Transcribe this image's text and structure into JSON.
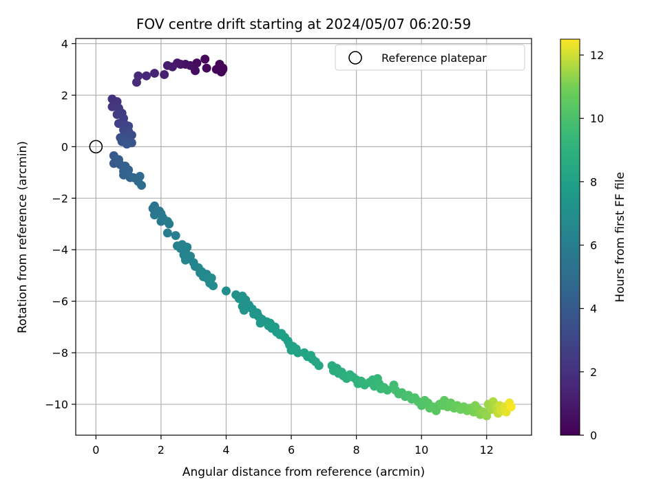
{
  "chart_data": {
    "type": "scatter",
    "title": "FOV centre drift starting at 2024/05/07 06:20:59",
    "xlabel": "Angular distance from reference (arcmin)",
    "ylabel": "Rotation from reference (arcmin)",
    "xlim": [
      -0.62,
      13.38
    ],
    "ylim": [
      -11.2,
      4.2
    ],
    "xticks": [
      0,
      2,
      4,
      6,
      8,
      10,
      12
    ],
    "yticks": [
      -10,
      -8,
      -6,
      -4,
      -2,
      0,
      2,
      4
    ],
    "xtick_labels": [
      "0",
      "2",
      "4",
      "6",
      "8",
      "10",
      "12"
    ],
    "ytick_labels": [
      "−10",
      "−8",
      "−6",
      "−4",
      "−2",
      "0",
      "2",
      "4"
    ],
    "grid": true,
    "colormap": "viridis",
    "colorbar": {
      "label": "Hours from first FF file",
      "range": [
        0,
        12.5
      ],
      "ticks": [
        0,
        2,
        4,
        6,
        8,
        10,
        12
      ],
      "tick_labels": [
        "0",
        "2",
        "4",
        "6",
        "8",
        "10",
        "12"
      ]
    },
    "reference_point": {
      "x": 0,
      "y": 0,
      "label": "Reference platepar",
      "marker": "open-circle"
    },
    "legend": {
      "location": "upper right",
      "entries": [
        "Reference platepar"
      ]
    },
    "series": [
      {
        "color_by": "hours",
        "points": [
          {
            "x": 3.85,
            "y": 2.9,
            "hours": 0.0
          },
          {
            "x": 3.9,
            "y": 3.0,
            "hours": 0.05
          },
          {
            "x": 3.8,
            "y": 3.2,
            "hours": 0.1
          },
          {
            "x": 3.9,
            "y": 3.05,
            "hours": 0.15
          },
          {
            "x": 3.7,
            "y": 3.0,
            "hours": 0.2
          },
          {
            "x": 3.35,
            "y": 3.4,
            "hours": 0.3
          },
          {
            "x": 3.4,
            "y": 3.05,
            "hours": 0.35
          },
          {
            "x": 3.1,
            "y": 3.25,
            "hours": 0.45
          },
          {
            "x": 3.05,
            "y": 2.95,
            "hours": 0.5
          },
          {
            "x": 2.9,
            "y": 3.15,
            "hours": 0.6
          },
          {
            "x": 2.75,
            "y": 3.2,
            "hours": 0.7
          },
          {
            "x": 2.6,
            "y": 3.2,
            "hours": 0.8
          },
          {
            "x": 2.5,
            "y": 3.25,
            "hours": 0.9
          },
          {
            "x": 2.35,
            "y": 3.1,
            "hours": 1.0
          },
          {
            "x": 2.2,
            "y": 3.15,
            "hours": 1.1
          },
          {
            "x": 2.1,
            "y": 2.8,
            "hours": 1.25
          },
          {
            "x": 1.8,
            "y": 2.85,
            "hours": 1.4
          },
          {
            "x": 1.55,
            "y": 2.75,
            "hours": 1.55
          },
          {
            "x": 1.3,
            "y": 2.75,
            "hours": 1.7
          },
          {
            "x": 1.25,
            "y": 2.5,
            "hours": 1.85
          },
          {
            "x": 0.5,
            "y": 1.85,
            "hours": 2.05
          },
          {
            "x": 0.65,
            "y": 1.75,
            "hours": 2.15
          },
          {
            "x": 0.5,
            "y": 1.55,
            "hours": 2.25
          },
          {
            "x": 0.7,
            "y": 1.5,
            "hours": 2.35
          },
          {
            "x": 0.8,
            "y": 1.3,
            "hours": 2.45
          },
          {
            "x": 0.65,
            "y": 1.25,
            "hours": 2.55
          },
          {
            "x": 0.85,
            "y": 1.1,
            "hours": 2.65
          },
          {
            "x": 0.7,
            "y": 0.9,
            "hours": 2.75
          },
          {
            "x": 0.9,
            "y": 0.85,
            "hours": 2.85
          },
          {
            "x": 1.0,
            "y": 0.8,
            "hours": 2.95
          },
          {
            "x": 0.85,
            "y": 0.65,
            "hours": 3.05
          },
          {
            "x": 1.0,
            "y": 0.6,
            "hours": 3.15
          },
          {
            "x": 0.9,
            "y": 0.45,
            "hours": 3.25
          },
          {
            "x": 1.1,
            "y": 0.45,
            "hours": 3.35
          },
          {
            "x": 0.75,
            "y": 0.35,
            "hours": 3.45
          },
          {
            "x": 0.95,
            "y": 0.25,
            "hours": 3.55
          },
          {
            "x": 0.8,
            "y": 0.2,
            "hours": 3.65
          },
          {
            "x": 1.1,
            "y": 0.15,
            "hours": 3.75
          },
          {
            "x": 0.95,
            "y": 0.1,
            "hours": 3.85
          },
          {
            "x": 0.55,
            "y": -0.35,
            "hours": 4.0
          },
          {
            "x": 0.55,
            "y": -0.65,
            "hours": 4.05
          },
          {
            "x": 0.65,
            "y": -0.6,
            "hours": 4.1
          },
          {
            "x": 0.7,
            "y": -0.5,
            "hours": 4.15
          },
          {
            "x": 0.75,
            "y": -0.7,
            "hours": 4.2
          },
          {
            "x": 0.9,
            "y": -0.75,
            "hours": 4.3
          },
          {
            "x": 0.85,
            "y": -0.95,
            "hours": 4.35
          },
          {
            "x": 1.0,
            "y": -0.9,
            "hours": 4.4
          },
          {
            "x": 0.85,
            "y": -1.1,
            "hours": 4.45
          },
          {
            "x": 1.0,
            "y": -1.1,
            "hours": 4.5
          },
          {
            "x": 1.05,
            "y": -1.2,
            "hours": 4.55
          },
          {
            "x": 1.15,
            "y": -1.2,
            "hours": 4.6
          },
          {
            "x": 1.25,
            "y": -1.25,
            "hours": 4.7
          },
          {
            "x": 1.35,
            "y": -1.15,
            "hours": 4.8
          },
          {
            "x": 1.3,
            "y": -1.35,
            "hours": 4.85
          },
          {
            "x": 1.4,
            "y": -1.5,
            "hours": 4.95
          },
          {
            "x": 1.8,
            "y": -2.3,
            "hours": 5.5
          },
          {
            "x": 1.75,
            "y": -2.4,
            "hours": 5.52
          },
          {
            "x": 1.85,
            "y": -2.45,
            "hours": 5.55
          },
          {
            "x": 1.95,
            "y": -2.5,
            "hours": 5.58
          },
          {
            "x": 1.8,
            "y": -2.65,
            "hours": 5.6
          },
          {
            "x": 2.0,
            "y": -2.6,
            "hours": 5.65
          },
          {
            "x": 2.05,
            "y": -2.75,
            "hours": 5.7
          },
          {
            "x": 2.1,
            "y": -2.85,
            "hours": 5.75
          },
          {
            "x": 2.0,
            "y": -2.9,
            "hours": 5.78
          },
          {
            "x": 2.2,
            "y": -2.9,
            "hours": 5.82
          },
          {
            "x": 2.25,
            "y": -3.0,
            "hours": 5.86
          },
          {
            "x": 2.2,
            "y": -3.35,
            "hours": 5.95
          },
          {
            "x": 2.45,
            "y": -3.45,
            "hours": 6.0
          },
          {
            "x": 2.5,
            "y": -3.85,
            "hours": 6.1
          },
          {
            "x": 2.6,
            "y": -3.95,
            "hours": 6.15
          },
          {
            "x": 2.65,
            "y": -3.8,
            "hours": 6.18
          },
          {
            "x": 2.75,
            "y": -4.05,
            "hours": 6.22
          },
          {
            "x": 2.8,
            "y": -3.9,
            "hours": 6.25
          },
          {
            "x": 2.7,
            "y": -4.2,
            "hours": 6.28
          },
          {
            "x": 2.85,
            "y": -4.35,
            "hours": 6.32
          },
          {
            "x": 2.75,
            "y": -4.4,
            "hours": 6.35
          },
          {
            "x": 2.9,
            "y": -4.25,
            "hours": 6.38
          },
          {
            "x": 3.0,
            "y": -4.5,
            "hours": 6.42
          },
          {
            "x": 3.05,
            "y": -4.65,
            "hours": 6.46
          },
          {
            "x": 3.15,
            "y": -4.7,
            "hours": 6.5
          },
          {
            "x": 3.2,
            "y": -4.9,
            "hours": 6.55
          },
          {
            "x": 3.3,
            "y": -5.05,
            "hours": 6.6
          },
          {
            "x": 3.25,
            "y": -4.85,
            "hours": 6.62
          },
          {
            "x": 3.4,
            "y": -4.95,
            "hours": 6.65
          },
          {
            "x": 3.45,
            "y": -5.15,
            "hours": 6.7
          },
          {
            "x": 3.55,
            "y": -5.1,
            "hours": 6.75
          },
          {
            "x": 3.5,
            "y": -5.3,
            "hours": 6.78
          },
          {
            "x": 3.6,
            "y": -5.4,
            "hours": 6.82
          },
          {
            "x": 4.0,
            "y": -5.6,
            "hours": 7.0
          },
          {
            "x": 4.3,
            "y": -5.75,
            "hours": 7.05
          },
          {
            "x": 4.4,
            "y": -5.9,
            "hours": 7.1
          },
          {
            "x": 4.5,
            "y": -5.8,
            "hours": 7.12
          },
          {
            "x": 4.55,
            "y": -6.0,
            "hours": 7.15
          },
          {
            "x": 4.6,
            "y": -5.95,
            "hours": 7.18
          },
          {
            "x": 4.5,
            "y": -6.2,
            "hours": 7.2
          },
          {
            "x": 4.7,
            "y": -6.15,
            "hours": 7.22
          },
          {
            "x": 4.55,
            "y": -6.35,
            "hours": 7.25
          },
          {
            "x": 4.8,
            "y": -6.3,
            "hours": 7.3
          },
          {
            "x": 4.85,
            "y": -6.5,
            "hours": 7.35
          },
          {
            "x": 4.95,
            "y": -6.45,
            "hours": 7.38
          },
          {
            "x": 5.0,
            "y": -6.6,
            "hours": 7.42
          },
          {
            "x": 5.1,
            "y": -6.7,
            "hours": 7.46
          },
          {
            "x": 5.05,
            "y": -6.85,
            "hours": 7.5
          },
          {
            "x": 5.25,
            "y": -6.8,
            "hours": 7.55
          },
          {
            "x": 5.3,
            "y": -6.95,
            "hours": 7.6
          },
          {
            "x": 5.35,
            "y": -6.85,
            "hours": 7.62
          },
          {
            "x": 5.4,
            "y": -7.05,
            "hours": 7.66
          },
          {
            "x": 5.5,
            "y": -7.0,
            "hours": 7.7
          },
          {
            "x": 5.55,
            "y": -7.2,
            "hours": 7.75
          },
          {
            "x": 5.65,
            "y": -7.3,
            "hours": 7.8
          },
          {
            "x": 5.7,
            "y": -7.25,
            "hours": 7.82
          },
          {
            "x": 5.8,
            "y": -7.4,
            "hours": 7.86
          },
          {
            "x": 5.9,
            "y": -7.55,
            "hours": 7.9
          },
          {
            "x": 5.95,
            "y": -7.7,
            "hours": 7.95
          },
          {
            "x": 6.05,
            "y": -7.75,
            "hours": 8.0
          },
          {
            "x": 6.0,
            "y": -7.9,
            "hours": 8.02
          },
          {
            "x": 6.15,
            "y": -7.85,
            "hours": 8.05
          },
          {
            "x": 6.2,
            "y": -8.0,
            "hours": 8.1
          },
          {
            "x": 6.4,
            "y": -8.0,
            "hours": 8.15
          },
          {
            "x": 6.5,
            "y": -8.15,
            "hours": 8.2
          },
          {
            "x": 6.6,
            "y": -8.1,
            "hours": 8.22
          },
          {
            "x": 6.65,
            "y": -8.25,
            "hours": 8.26
          },
          {
            "x": 6.75,
            "y": -8.35,
            "hours": 8.3
          },
          {
            "x": 6.85,
            "y": -8.5,
            "hours": 8.36
          },
          {
            "x": 7.25,
            "y": -8.5,
            "hours": 8.6
          },
          {
            "x": 7.3,
            "y": -8.7,
            "hours": 8.65
          },
          {
            "x": 7.4,
            "y": -8.6,
            "hours": 8.7
          },
          {
            "x": 7.45,
            "y": -8.8,
            "hours": 8.75
          },
          {
            "x": 7.55,
            "y": -8.75,
            "hours": 8.8
          },
          {
            "x": 7.6,
            "y": -8.9,
            "hours": 8.85
          },
          {
            "x": 7.7,
            "y": -9.0,
            "hours": 8.9
          },
          {
            "x": 7.8,
            "y": -8.85,
            "hours": 8.95
          },
          {
            "x": 7.9,
            "y": -8.95,
            "hours": 9.0
          },
          {
            "x": 8.0,
            "y": -9.05,
            "hours": 9.05
          },
          {
            "x": 8.05,
            "y": -9.2,
            "hours": 9.1
          },
          {
            "x": 8.15,
            "y": -9.1,
            "hours": 9.15
          },
          {
            "x": 8.25,
            "y": -9.25,
            "hours": 9.2
          },
          {
            "x": 8.4,
            "y": -9.15,
            "hours": 9.25
          },
          {
            "x": 8.5,
            "y": -9.05,
            "hours": 9.3
          },
          {
            "x": 8.55,
            "y": -9.3,
            "hours": 9.35
          },
          {
            "x": 8.65,
            "y": -9.0,
            "hours": 9.4
          },
          {
            "x": 8.7,
            "y": -9.2,
            "hours": 9.45
          },
          {
            "x": 8.75,
            "y": -9.4,
            "hours": 9.5
          },
          {
            "x": 8.85,
            "y": -9.35,
            "hours": 9.55
          },
          {
            "x": 8.95,
            "y": -9.45,
            "hours": 9.6
          },
          {
            "x": 9.15,
            "y": -9.25,
            "hours": 9.7
          },
          {
            "x": 9.2,
            "y": -9.45,
            "hours": 9.75
          },
          {
            "x": 9.3,
            "y": -9.6,
            "hours": 9.8
          },
          {
            "x": 9.4,
            "y": -9.55,
            "hours": 9.85
          },
          {
            "x": 9.5,
            "y": -9.7,
            "hours": 9.9
          },
          {
            "x": 9.6,
            "y": -9.65,
            "hours": 9.95
          },
          {
            "x": 9.7,
            "y": -9.8,
            "hours": 10.0
          },
          {
            "x": 9.8,
            "y": -9.75,
            "hours": 10.05
          },
          {
            "x": 9.9,
            "y": -9.9,
            "hours": 10.1
          },
          {
            "x": 10.0,
            "y": -10.05,
            "hours": 10.15
          },
          {
            "x": 10.1,
            "y": -9.85,
            "hours": 10.2
          },
          {
            "x": 10.2,
            "y": -9.95,
            "hours": 10.25
          },
          {
            "x": 10.25,
            "y": -10.15,
            "hours": 10.3
          },
          {
            "x": 10.35,
            "y": -10.1,
            "hours": 10.35
          },
          {
            "x": 10.45,
            "y": -10.25,
            "hours": 10.4
          },
          {
            "x": 10.55,
            "y": -10.0,
            "hours": 10.45
          },
          {
            "x": 10.65,
            "y": -10.05,
            "hours": 10.5
          },
          {
            "x": 10.7,
            "y": -9.85,
            "hours": 10.55
          },
          {
            "x": 10.8,
            "y": -10.1,
            "hours": 10.6
          },
          {
            "x": 10.9,
            "y": -9.95,
            "hours": 10.65
          },
          {
            "x": 11.0,
            "y": -10.15,
            "hours": 10.7
          },
          {
            "x": 11.1,
            "y": -10.05,
            "hours": 10.75
          },
          {
            "x": 11.2,
            "y": -10.2,
            "hours": 10.85
          },
          {
            "x": 11.3,
            "y": -10.1,
            "hours": 10.9
          },
          {
            "x": 11.4,
            "y": -10.25,
            "hours": 10.95
          },
          {
            "x": 11.5,
            "y": -10.15,
            "hours": 11.0
          },
          {
            "x": 11.6,
            "y": -10.3,
            "hours": 11.05
          },
          {
            "x": 11.65,
            "y": -10.05,
            "hours": 11.1
          },
          {
            "x": 11.75,
            "y": -10.2,
            "hours": 11.15
          },
          {
            "x": 11.8,
            "y": -10.4,
            "hours": 11.2
          },
          {
            "x": 11.9,
            "y": -10.3,
            "hours": 11.3
          },
          {
            "x": 12.0,
            "y": -10.45,
            "hours": 11.35
          },
          {
            "x": 12.05,
            "y": -10.0,
            "hours": 11.45
          },
          {
            "x": 12.15,
            "y": -10.2,
            "hours": 11.55
          },
          {
            "x": 12.2,
            "y": -9.9,
            "hours": 11.65
          },
          {
            "x": 12.3,
            "y": -10.15,
            "hours": 11.75
          },
          {
            "x": 12.35,
            "y": -10.35,
            "hours": 11.85
          },
          {
            "x": 12.4,
            "y": -10.05,
            "hours": 11.95
          },
          {
            "x": 12.45,
            "y": -10.25,
            "hours": 12.05
          },
          {
            "x": 12.55,
            "y": -10.1,
            "hours": 12.15
          },
          {
            "x": 12.6,
            "y": -10.3,
            "hours": 12.25
          },
          {
            "x": 12.7,
            "y": -9.95,
            "hours": 12.35
          },
          {
            "x": 12.75,
            "y": -10.1,
            "hours": 12.45
          }
        ]
      }
    ]
  }
}
